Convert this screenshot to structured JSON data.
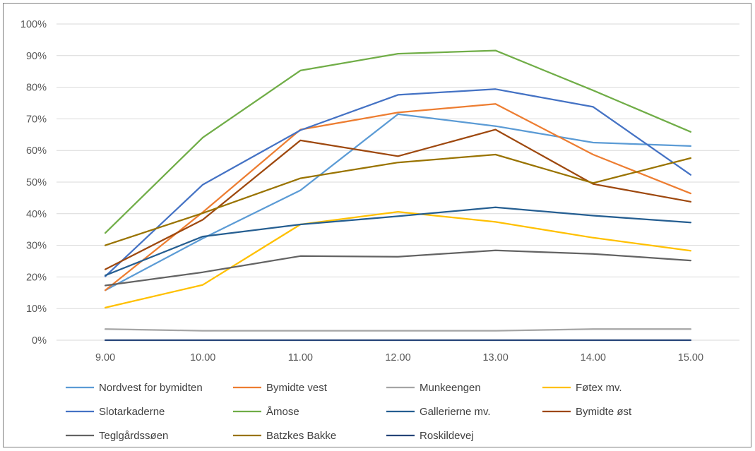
{
  "chart_data": {
    "type": "line",
    "categories": [
      "9.00",
      "10.00",
      "11.00",
      "12.00",
      "13.00",
      "14.00",
      "15.00"
    ],
    "ylim": [
      0,
      100
    ],
    "y_ticks": [
      "0%",
      "10%",
      "20%",
      "30%",
      "40%",
      "50%",
      "60%",
      "70%",
      "80%",
      "90%",
      "100%"
    ],
    "grid": true,
    "legend_position": "bottom",
    "series": [
      {
        "name": "Nordvest for bymidten",
        "color": "#5b9bd5",
        "values": [
          15.8,
          32.2,
          47.4,
          71.5,
          67.7,
          62.5,
          61.4
        ]
      },
      {
        "name": "Bymidte vest",
        "color": "#ed7d31",
        "values": [
          15.8,
          40.5,
          66.6,
          72.0,
          74.7,
          58.7,
          46.4
        ]
      },
      {
        "name": "Munkeengen",
        "color": "#a5a5a5",
        "values": [
          3.5,
          3.0,
          3.0,
          3.0,
          3.0,
          3.5,
          3.5
        ]
      },
      {
        "name": "Føtex mv.",
        "color": "#ffc000",
        "values": [
          10.3,
          17.5,
          36.6,
          40.6,
          37.4,
          32.4,
          28.3
        ]
      },
      {
        "name": "Slotarkaderne",
        "color": "#4472c4",
        "values": [
          20.2,
          49.2,
          66.4,
          77.6,
          79.4,
          73.8,
          52.3
        ]
      },
      {
        "name": "Åmose",
        "color": "#70ad47",
        "values": [
          33.9,
          64.1,
          85.3,
          90.6,
          91.6,
          79.0,
          65.9
        ]
      },
      {
        "name": "Gallerierne mv.",
        "color": "#255e91",
        "values": [
          20.5,
          32.8,
          36.6,
          39.2,
          42.0,
          39.4,
          37.2
        ]
      },
      {
        "name": "Bymidte øst",
        "color": "#9e480e",
        "values": [
          22.4,
          38.1,
          63.2,
          58.2,
          66.6,
          49.4,
          43.8
        ]
      },
      {
        "name": "Teglgårdssøen",
        "color": "#636363",
        "values": [
          17.3,
          21.5,
          26.6,
          26.4,
          28.4,
          27.3,
          25.2
        ]
      },
      {
        "name": "Batzkes Bakke",
        "color": "#997300",
        "values": [
          30.0,
          40.2,
          51.2,
          56.2,
          58.7,
          49.7,
          57.6
        ]
      },
      {
        "name": "Roskildevej",
        "color": "#264478",
        "values": [
          0,
          0,
          0,
          0,
          0,
          0,
          0
        ]
      }
    ]
  }
}
